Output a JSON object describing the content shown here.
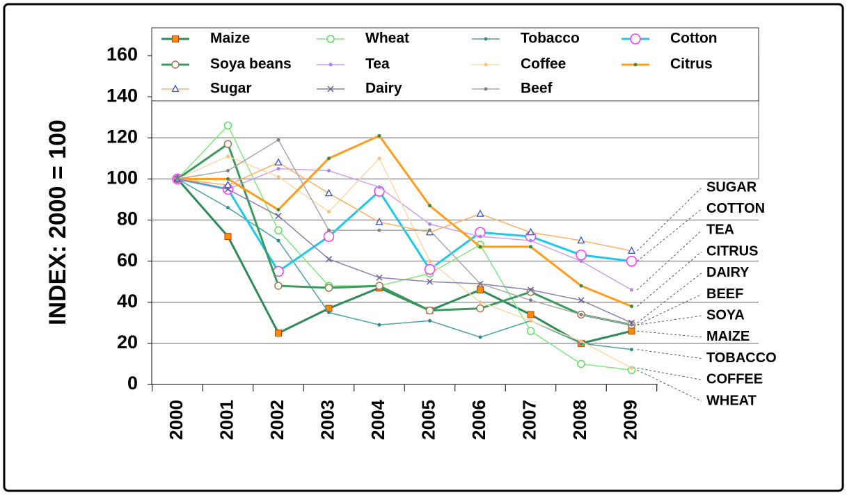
{
  "chart_data": {
    "type": "line",
    "ylabel": "INDEX: 2000 = 100",
    "categories": [
      "2000",
      "2001",
      "2002",
      "2003",
      "2004",
      "2005",
      "2006",
      "2007",
      "2008",
      "2009"
    ],
    "ylim": [
      0,
      160
    ],
    "yticks": [
      0,
      20,
      40,
      60,
      80,
      100,
      120,
      140,
      160
    ],
    "grid": true,
    "series": [
      {
        "name": "Maize",
        "color": "#2e8b57",
        "marker": "square",
        "marker_color": "#ff8c00",
        "values": [
          100,
          72,
          25,
          37,
          47,
          36,
          46,
          34,
          20,
          26
        ]
      },
      {
        "name": "Wheat",
        "color": "#7ee87e",
        "marker": "circle",
        "marker_color": "#5edc5e",
        "values": [
          100,
          126,
          75,
          48,
          48,
          54,
          68,
          26,
          10,
          7
        ]
      },
      {
        "name": "Tobacco",
        "color": "#4aa3a3",
        "marker": "dot",
        "marker_color": "#2e8b8b",
        "values": [
          100,
          86,
          70,
          35,
          29,
          31,
          23,
          31,
          20,
          17
        ]
      },
      {
        "name": "Cotton",
        "color": "#1ec8e8",
        "marker": "circle",
        "marker_color": "#ff33ff",
        "values": [
          100,
          95,
          55,
          72,
          94,
          56,
          74,
          72,
          63,
          60
        ]
      },
      {
        "name": "Soya beans",
        "color": "#3a9a5c",
        "marker": "circle",
        "marker_color": "#a07850",
        "values": [
          100,
          117,
          48,
          47,
          48,
          36,
          37,
          45,
          34,
          29
        ]
      },
      {
        "name": "Tea",
        "color": "#c9a0ef",
        "marker": "dot",
        "marker_color": "#b080e0",
        "values": [
          100,
          95,
          105,
          104,
          96,
          78,
          72,
          70,
          60,
          46
        ]
      },
      {
        "name": "Coffee",
        "color": "#ffd8a8",
        "marker": "dot",
        "marker_color": "#f5c080",
        "values": [
          100,
          111,
          101,
          84,
          110,
          60,
          40,
          31,
          21,
          8
        ]
      },
      {
        "name": "Citrus",
        "color": "#ff9c1a",
        "marker": "dot",
        "marker_color": "#3a8a3a",
        "values": [
          100,
          100,
          85,
          110,
          121,
          87,
          67,
          67,
          48,
          38
        ]
      },
      {
        "name": "Sugar",
        "color": "#ffb060",
        "marker": "triangle",
        "marker_color": "#3050d0",
        "values": [
          100,
          97,
          108,
          93,
          79,
          74,
          83,
          74,
          70,
          65
        ]
      },
      {
        "name": "Dairy",
        "color": "#8a80b0",
        "marker": "x",
        "marker_color": "#6a60a0",
        "values": [
          100,
          95,
          82,
          61,
          52,
          50,
          49,
          46,
          41,
          30
        ]
      },
      {
        "name": "Beef",
        "color": "#a8a8a8",
        "marker": "dot",
        "marker_color": "#808080",
        "values": [
          100,
          104,
          119,
          75,
          75,
          75,
          49,
          41,
          34,
          29
        ]
      }
    ],
    "annotations": [
      "SUGAR",
      "COTTON",
      "TEA",
      "CITRUS",
      "DAIRY",
      "BEEF",
      "SOYA",
      "MAIZE",
      "TOBACCO",
      "COFFEE",
      "WHEAT"
    ]
  }
}
